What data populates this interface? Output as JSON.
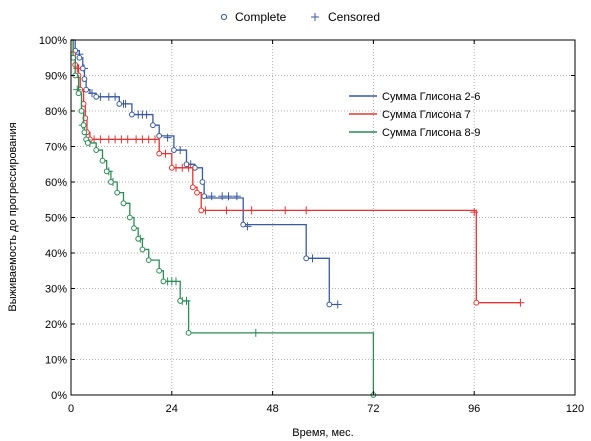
{
  "chart_data": {
    "type": "line",
    "subtype": "kaplan-meier",
    "xlabel": "Время, мес.",
    "ylabel": "Выживаемость до прогрессирования",
    "xlim": [
      0,
      120
    ],
    "ylim": [
      0,
      100
    ],
    "x_ticks": [
      0,
      24,
      48,
      72,
      96,
      120
    ],
    "y_ticks": [
      0,
      10,
      20,
      30,
      40,
      50,
      60,
      70,
      80,
      90,
      100
    ],
    "x_tick_labels": [
      "0",
      "24",
      "48",
      "72",
      "96",
      "120"
    ],
    "y_tick_labels": [
      "0%",
      "10%",
      "20%",
      "30%",
      "40%",
      "50%",
      "60%",
      "70%",
      "80%",
      "90%",
      "100%"
    ],
    "grid": true,
    "marker_legend": {
      "position": "top-center",
      "items": [
        {
          "symbol": "circle",
          "label": "Complete"
        },
        {
          "symbol": "plus",
          "label": "Censored"
        }
      ]
    },
    "legend_position": "top-right",
    "series": [
      {
        "name": "Сумма Глисона 2-6",
        "color": "#3a5aa0",
        "steps": [
          [
            0,
            100
          ],
          [
            1,
            97
          ],
          [
            2,
            95
          ],
          [
            2.8,
            92
          ],
          [
            3.2,
            89
          ],
          [
            3.6,
            86
          ],
          [
            4.5,
            85
          ],
          [
            6,
            84
          ],
          [
            11.5,
            82
          ],
          [
            14.5,
            79
          ],
          [
            19.5,
            76
          ],
          [
            21,
            73
          ],
          [
            24.5,
            69
          ],
          [
            27.5,
            65
          ],
          [
            29.5,
            64
          ],
          [
            31.3,
            60
          ],
          [
            31.7,
            56
          ],
          [
            32.3,
            55.5
          ],
          [
            41,
            48
          ],
          [
            56,
            38.5
          ],
          [
            61.5,
            25.5
          ],
          [
            63.5,
            25.5
          ]
        ],
        "complete": [
          [
            1,
            97
          ],
          [
            2,
            95
          ],
          [
            2.8,
            92
          ],
          [
            3.2,
            89
          ],
          [
            3.6,
            86
          ],
          [
            6,
            84
          ],
          [
            11.5,
            82
          ],
          [
            14.5,
            79
          ],
          [
            19.5,
            76
          ],
          [
            21,
            73
          ],
          [
            24.5,
            69
          ],
          [
            27.5,
            65
          ],
          [
            29.5,
            64
          ],
          [
            31.3,
            60
          ],
          [
            31.7,
            56
          ],
          [
            41,
            48
          ],
          [
            56,
            38.5
          ],
          [
            61.5,
            25.5
          ]
        ],
        "censored": [
          [
            2,
            96
          ],
          [
            3.1,
            92
          ],
          [
            5,
            85
          ],
          [
            7,
            84
          ],
          [
            9,
            84
          ],
          [
            10.5,
            84
          ],
          [
            12.5,
            82
          ],
          [
            13,
            82
          ],
          [
            16,
            79
          ],
          [
            17,
            79
          ],
          [
            18,
            79
          ],
          [
            23,
            72.5
          ],
          [
            26,
            69
          ],
          [
            28.5,
            65
          ],
          [
            33.5,
            56
          ],
          [
            36,
            56
          ],
          [
            37.5,
            56
          ],
          [
            39.5,
            56
          ],
          [
            42,
            47.5
          ],
          [
            57.5,
            38.5
          ],
          [
            63.5,
            25.5
          ]
        ]
      },
      {
        "name": "Сумма Глисона 7",
        "color": "#e53333",
        "steps": [
          [
            0,
            100
          ],
          [
            0.5,
            96
          ],
          [
            1,
            93
          ],
          [
            1.8,
            90
          ],
          [
            2.2,
            86
          ],
          [
            3,
            82
          ],
          [
            3.4,
            78
          ],
          [
            3.8,
            74
          ],
          [
            4.5,
            72
          ],
          [
            21,
            68
          ],
          [
            24,
            64
          ],
          [
            29,
            58.5
          ],
          [
            30,
            57
          ],
          [
            31,
            52
          ],
          [
            96.5,
            26
          ],
          [
            107,
            26
          ]
        ],
        "complete": [
          [
            0.5,
            96
          ],
          [
            1,
            93
          ],
          [
            1.8,
            90
          ],
          [
            2.2,
            86
          ],
          [
            3,
            82
          ],
          [
            3.4,
            78
          ],
          [
            3.8,
            74
          ],
          [
            4.5,
            72
          ],
          [
            21,
            68
          ],
          [
            24,
            64
          ],
          [
            29,
            58.5
          ],
          [
            30,
            57
          ],
          [
            31,
            52
          ],
          [
            96.5,
            26
          ]
        ],
        "censored": [
          [
            1.5,
            92
          ],
          [
            5.5,
            72
          ],
          [
            7,
            72
          ],
          [
            9,
            72
          ],
          [
            10.5,
            72
          ],
          [
            12,
            72
          ],
          [
            13.5,
            72
          ],
          [
            15.5,
            72
          ],
          [
            17,
            72
          ],
          [
            18.5,
            72
          ],
          [
            20,
            72
          ],
          [
            22.5,
            68
          ],
          [
            25,
            64
          ],
          [
            26.5,
            64
          ],
          [
            28,
            64
          ],
          [
            32,
            52
          ],
          [
            37,
            52
          ],
          [
            43,
            52
          ],
          [
            51,
            52
          ],
          [
            56,
            52
          ],
          [
            96,
            51.5
          ],
          [
            107,
            26
          ]
        ]
      },
      {
        "name": "Сумма Глисона 8-9",
        "color": "#2e8b57",
        "steps": [
          [
            0,
            100
          ],
          [
            0.5,
            95
          ],
          [
            1,
            90
          ],
          [
            1.8,
            85
          ],
          [
            2.5,
            80
          ],
          [
            3,
            76
          ],
          [
            3.2,
            74
          ],
          [
            3.6,
            72
          ],
          [
            4,
            71
          ],
          [
            6,
            69
          ],
          [
            7.5,
            66
          ],
          [
            8.5,
            63
          ],
          [
            9.5,
            60
          ],
          [
            11,
            57
          ],
          [
            12.5,
            54
          ],
          [
            14,
            50
          ],
          [
            15,
            47
          ],
          [
            16,
            44
          ],
          [
            17,
            41
          ],
          [
            18.5,
            38
          ],
          [
            21,
            35
          ],
          [
            22,
            32
          ],
          [
            26,
            26.5
          ],
          [
            28,
            17.5
          ],
          [
            72,
            0
          ]
        ],
        "complete": [
          [
            0.5,
            95
          ],
          [
            1,
            90
          ],
          [
            1.8,
            85
          ],
          [
            2.5,
            80
          ],
          [
            3,
            76
          ],
          [
            3.2,
            74
          ],
          [
            3.6,
            72
          ],
          [
            4,
            71
          ],
          [
            6,
            69
          ],
          [
            7.5,
            66
          ],
          [
            8.5,
            63
          ],
          [
            9.5,
            60
          ],
          [
            11,
            57
          ],
          [
            12.5,
            54
          ],
          [
            14,
            50
          ],
          [
            15,
            47
          ],
          [
            16,
            44
          ],
          [
            17,
            41
          ],
          [
            18.5,
            38
          ],
          [
            21,
            35
          ],
          [
            22,
            32
          ],
          [
            26,
            26.5
          ],
          [
            28,
            17.5
          ],
          [
            72,
            0
          ]
        ],
        "censored": [
          [
            1.5,
            86
          ],
          [
            2.8,
            76
          ],
          [
            4.5,
            71
          ],
          [
            9,
            63
          ],
          [
            10,
            60
          ],
          [
            16.5,
            44
          ],
          [
            23,
            32
          ],
          [
            24,
            32
          ],
          [
            25,
            32
          ],
          [
            26.5,
            26.5
          ],
          [
            27.5,
            26.5
          ],
          [
            44,
            17.5
          ]
        ]
      }
    ]
  }
}
